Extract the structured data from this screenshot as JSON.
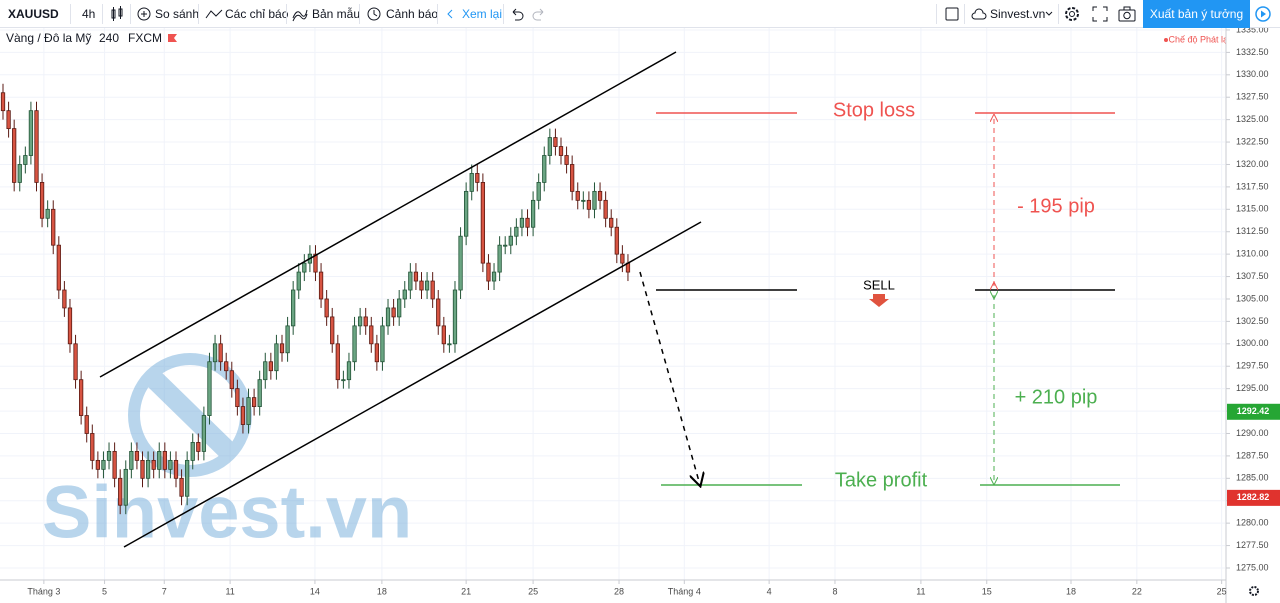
{
  "toolbar": {
    "symbol": "XAUUSD",
    "interval": "4h",
    "compare": "So sánh",
    "indicators": "Các chỉ báo",
    "templates": "Bản mẫu",
    "alerts": "Cảnh báo",
    "replay": "Xem lại",
    "account": "Sinvest.vn",
    "publish": "Xuất bản ý tưởng"
  },
  "chart_data": {
    "type": "candlestick",
    "legend": {
      "name": "Vàng / Đô la Mỹ",
      "interval": "240",
      "source": "FXCM"
    },
    "mode_label": "Chế độ Phát lại",
    "watermark": "Sinvest.vn",
    "annotations": {
      "stop_loss": "Stop loss",
      "risk": "- 195 pip",
      "reward": "+ 210 pip",
      "sell": "SELL",
      "take_profit": "Take profit"
    },
    "up_color": "#6ba583",
    "down_color": "#d75442",
    "up_border": "#225437",
    "down_border": "#5b1a13",
    "open": [
      1328,
      1326,
      1324,
      1318,
      1320,
      1321,
      1326,
      1318,
      1314,
      1315,
      1311,
      1306,
      1304,
      1300,
      1296,
      1292,
      1290,
      1287,
      1286,
      1287,
      1288,
      1285,
      1282,
      1286,
      1288,
      1287,
      1285,
      1287,
      1286,
      1288,
      1286,
      1287,
      1285,
      1283,
      1287,
      1289,
      1288,
      1292,
      1298,
      1300,
      1298,
      1297,
      1295,
      1293,
      1291,
      1294,
      1293,
      1296,
      1298,
      1297,
      1300,
      1299,
      1302,
      1306,
      1308,
      1309,
      1310,
      1308,
      1305,
      1303,
      1300,
      1296,
      1296,
      1298,
      1302,
      1303,
      1302,
      1300,
      1298,
      1302,
      1304,
      1303,
      1305,
      1306,
      1308,
      1307,
      1306,
      1307,
      1305,
      1302,
      1300,
      1300,
      1306,
      1312,
      1317,
      1319,
      1318,
      1309,
      1307,
      1308,
      1311,
      1311,
      1312,
      1313,
      1314,
      1313,
      1316,
      1318,
      1321,
      1323,
      1322,
      1321,
      1320,
      1317,
      1316,
      1316,
      1315,
      1317,
      1316,
      1314,
      1313,
      1310,
      1309
    ],
    "high": [
      1329,
      1327,
      1325,
      1321,
      1322,
      1327,
      1327,
      1319,
      1316,
      1316,
      1312,
      1307,
      1305,
      1301,
      1297,
      1293,
      1291,
      1288,
      1288,
      1289,
      1289,
      1286,
      1287,
      1289,
      1289,
      1288,
      1288,
      1288,
      1289,
      1289,
      1288,
      1288,
      1286,
      1288,
      1290,
      1290,
      1293,
      1299,
      1301,
      1301,
      1299,
      1298,
      1296,
      1294,
      1295,
      1295,
      1297,
      1299,
      1299,
      1301,
      1301,
      1303,
      1307,
      1309,
      1310,
      1311,
      1311,
      1309,
      1306,
      1304,
      1301,
      1297,
      1299,
      1303,
      1304,
      1304,
      1303,
      1301,
      1303,
      1305,
      1305,
      1306,
      1307,
      1309,
      1309,
      1308,
      1308,
      1308,
      1306,
      1303,
      1301,
      1307,
      1313,
      1318,
      1320,
      1320,
      1319,
      1310,
      1309,
      1312,
      1312,
      1313,
      1314,
      1315,
      1315,
      1317,
      1319,
      1322,
      1324,
      1324,
      1323,
      1322,
      1321,
      1318,
      1317,
      1317,
      1318,
      1318,
      1317,
      1315,
      1314,
      1311,
      1310
    ],
    "low": [
      1325,
      1323,
      1317,
      1317,
      1319,
      1320,
      1317,
      1313,
      1313,
      1310,
      1305,
      1303,
      1299,
      1295,
      1291,
      1289,
      1286,
      1285,
      1285,
      1286,
      1284,
      1281,
      1281,
      1285,
      1286,
      1284,
      1284,
      1285,
      1285,
      1285,
      1285,
      1284,
      1282,
      1282,
      1286,
      1287,
      1287,
      1291,
      1297,
      1297,
      1296,
      1294,
      1292,
      1290,
      1290,
      1292,
      1292,
      1295,
      1296,
      1296,
      1298,
      1298,
      1301,
      1305,
      1307,
      1308,
      1307,
      1304,
      1302,
      1299,
      1295,
      1295,
      1295,
      1297,
      1301,
      1301,
      1299,
      1297,
      1297,
      1301,
      1302,
      1302,
      1304,
      1305,
      1306,
      1305,
      1305,
      1304,
      1301,
      1299,
      1299,
      1299,
      1305,
      1311,
      1316,
      1317,
      1308,
      1306,
      1306,
      1307,
      1310,
      1310,
      1311,
      1312,
      1312,
      1312,
      1315,
      1317,
      1320,
      1321,
      1320,
      1319,
      1316,
      1315,
      1315,
      1314,
      1314,
      1315,
      1313,
      1312,
      1309,
      1308,
      1307
    ],
    "close": [
      1326,
      1324,
      1318,
      1320,
      1321,
      1326,
      1318,
      1314,
      1315,
      1311,
      1306,
      1304,
      1300,
      1296,
      1292,
      1290,
      1287,
      1286,
      1287,
      1288,
      1285,
      1282,
      1286,
      1288,
      1287,
      1285,
      1287,
      1286,
      1288,
      1286,
      1287,
      1285,
      1283,
      1287,
      1289,
      1288,
      1292,
      1298,
      1300,
      1298,
      1297,
      1295,
      1293,
      1291,
      1294,
      1293,
      1296,
      1298,
      1297,
      1300,
      1299,
      1302,
      1306,
      1308,
      1309,
      1310,
      1308,
      1305,
      1303,
      1300,
      1296,
      1296,
      1298,
      1302,
      1303,
      1302,
      1300,
      1298,
      1302,
      1304,
      1303,
      1305,
      1306,
      1308,
      1307,
      1306,
      1307,
      1305,
      1302,
      1300,
      1300,
      1306,
      1312,
      1317,
      1319,
      1318,
      1309,
      1307,
      1308,
      1311,
      1311,
      1312,
      1313,
      1314,
      1313,
      1316,
      1318,
      1321,
      1323,
      1322,
      1321,
      1320,
      1317,
      1316,
      1316,
      1315,
      1317,
      1316,
      1314,
      1313,
      1310,
      1309,
      1308
    ],
    "xlim": [
      -0.54,
      219
    ],
    "xticks": [
      {
        "value": 7.32,
        "label": "Tháng 3"
      },
      {
        "value": 18.2,
        "label": "5"
      },
      {
        "value": 28.9,
        "label": "7"
      },
      {
        "value": 40.7,
        "label": "11"
      },
      {
        "value": 55.9,
        "label": "14"
      },
      {
        "value": 67.9,
        "label": "18"
      },
      {
        "value": 83.0,
        "label": "21"
      },
      {
        "value": 95.0,
        "label": "25"
      },
      {
        "value": 110.4,
        "label": "28"
      },
      {
        "value": 122.1,
        "label": "Tháng 4"
      },
      {
        "value": 137.3,
        "label": "4"
      },
      {
        "value": 149.1,
        "label": "8"
      },
      {
        "value": 164.5,
        "label": "11"
      },
      {
        "value": 176.3,
        "label": "15"
      },
      {
        "value": 191.4,
        "label": "18"
      },
      {
        "value": 203.2,
        "label": "22"
      },
      {
        "value": 218.4,
        "label": "25"
      }
    ],
    "ylim": [
      1273.66,
      1335.22
    ],
    "yticks": [
      {
        "value": 1275,
        "label": "1275.00"
      },
      {
        "value": 1277.5,
        "label": "1277.50"
      },
      {
        "value": 1280,
        "label": "1280.00"
      },
      {
        "value": 1282.5,
        "label": "1282.50"
      },
      {
        "value": 1285,
        "label": "1285.00"
      },
      {
        "value": 1287.5,
        "label": "1287.50"
      },
      {
        "value": 1290,
        "label": "1290.00"
      },
      {
        "value": 1292.5,
        "label": "1292.50"
      },
      {
        "value": 1295,
        "label": "1295.00"
      },
      {
        "value": 1297.5,
        "label": "1297.50"
      },
      {
        "value": 1300,
        "label": "1300.00"
      },
      {
        "value": 1302.5,
        "label": "1302.50"
      },
      {
        "value": 1305,
        "label": "1305.00"
      },
      {
        "value": 1307.5,
        "label": "1307.50"
      },
      {
        "value": 1310,
        "label": "1310.00"
      },
      {
        "value": 1312.5,
        "label": "1312.50"
      },
      {
        "value": 1315,
        "label": "1315.00"
      },
      {
        "value": 1317.5,
        "label": "1317.50"
      },
      {
        "value": 1320,
        "label": "1320.00"
      },
      {
        "value": 1322.5,
        "label": "1322.50"
      },
      {
        "value": 1325,
        "label": "1325.00"
      },
      {
        "value": 1327.5,
        "label": "1327.50"
      },
      {
        "value": 1330,
        "label": "1330.00"
      },
      {
        "value": 1332.5,
        "label": "1332.50"
      },
      {
        "value": 1335,
        "label": "1335.00"
      }
    ],
    "price_markers": [
      {
        "value": 1292.42,
        "color": "#26a634"
      },
      {
        "value": 1282.82,
        "color": "#e0332e"
      }
    ],
    "grid": true
  }
}
